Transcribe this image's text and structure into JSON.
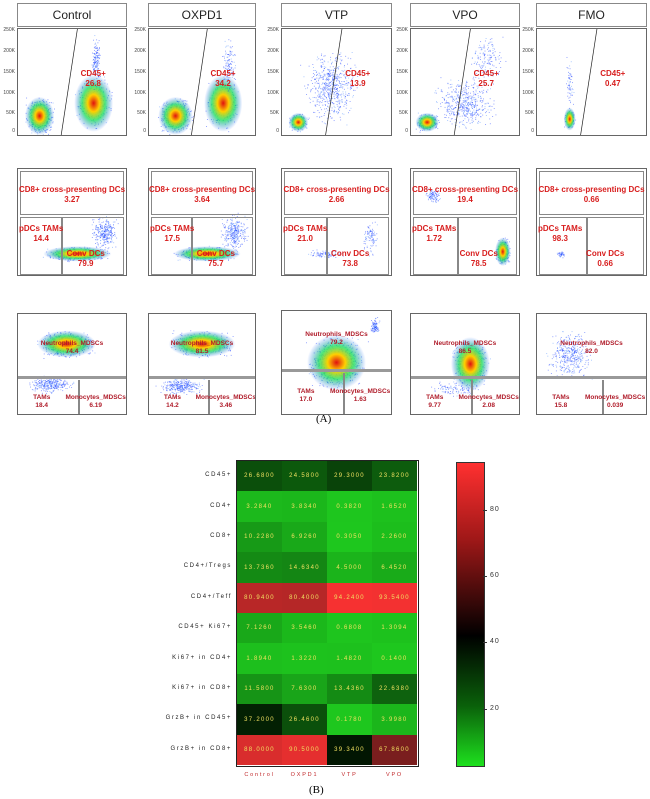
{
  "panel_label_a": "(A)",
  "panel_label_b": "(B)",
  "groups": [
    "Control",
    "OXPD1",
    "VTP",
    "VPO",
    "FMO"
  ],
  "row1": [
    {
      "gate": "CD45+",
      "value": "26.8"
    },
    {
      "gate": "CD45+",
      "value": "34.2"
    },
    {
      "gate": "CD45+",
      "value": "13.9"
    },
    {
      "gate": "CD45+",
      "value": "25.7"
    },
    {
      "gate": "CD45+",
      "value": "0.47"
    }
  ],
  "row2": [
    {
      "cd8_label": "CD8+ cross-presenting DCs",
      "cd8": "3.27",
      "pdc_label": "pDCs TAMs",
      "pdc": "14.4",
      "conv_label": "Conv DCs",
      "conv": "79.9"
    },
    {
      "cd8_label": "CD8+ cross-presenting DCs",
      "cd8": "3.64",
      "pdc_label": "pDCs TAMs",
      "pdc": "17.5",
      "conv_label": "Conv DCs",
      "conv": "75.7"
    },
    {
      "cd8_label": "CD8+ cross-presenting DCs",
      "cd8": "2.66",
      "pdc_label": "pDCs TAMs",
      "pdc": "21.0",
      "conv_label": "Conv DCs",
      "conv": "73.8"
    },
    {
      "cd8_label": "CD8+ cross-presenting DCs",
      "cd8": "19.4",
      "pdc_label": "pDCs TAMs",
      "pdc": "1.72",
      "conv_label": "Conv DCs",
      "conv": "78.5"
    },
    {
      "cd8_label": "CD8+ cross-presenting DCs",
      "cd8": "0.66",
      "pdc_label": "pDCs TAMs",
      "pdc": "98.3",
      "conv_label": "Conv DCs",
      "conv": "0.66"
    }
  ],
  "row3": [
    {
      "neu_label": "Neutrophils_MDSCs",
      "neu": "74.4",
      "tam_label": "TAMs",
      "tam": "18.4",
      "mono_label": "Monocytes_MDSCs",
      "mono": "6.19"
    },
    {
      "neu_label": "Neutrophils_MDSCs",
      "neu": "81.5",
      "tam_label": "TAMs",
      "tam": "14.2",
      "mono_label": "Monocytes_MDSCs",
      "mono": "3.46"
    },
    {
      "neu_label": "Neutrophils_MDSCs",
      "neu": "79.2",
      "tam_label": "TAMs",
      "tam": "17.0",
      "mono_label": "Monocytes_MDSCs",
      "mono": "1.63"
    },
    {
      "neu_label": "Neutrophils_MDSCs",
      "neu": "86.5",
      "tam_label": "TAMs",
      "tam": "9.77",
      "mono_label": "Monocytes_MDSCs",
      "mono": "2.08"
    },
    {
      "neu_label": "Neutrophils_MDSCs",
      "neu": "82.0",
      "tam_label": "TAMs",
      "tam": "15.8",
      "mono_label": "Monocytes_MDSCs",
      "mono": "0.039"
    }
  ],
  "flow_axis_ticks_y_row1": [
    "250K",
    "200K",
    "150K",
    "100K",
    "50K",
    "0"
  ],
  "chart_data": {
    "type": "heatmap",
    "columns": [
      "Control",
      "OXPD1",
      "VTP",
      "VPO"
    ],
    "rows": [
      "CD45+",
      "CD4+",
      "CD8+",
      "CD4+/Tregs",
      "CD4+/Teff",
      "CD45+ Ki67+",
      "Ki67+ in CD4+",
      "Ki67+ in CD8+",
      "GrzB+ in CD45+",
      "GrzB+ in CD8+"
    ],
    "values": [
      [
        26.68,
        24.58,
        29.3,
        23.82
      ],
      [
        3.284,
        3.834,
        0.382,
        1.652
      ],
      [
        10.228,
        6.926,
        0.305,
        2.26
      ],
      [
        13.736,
        14.634,
        4.5,
        6.452
      ],
      [
        80.94,
        80.4,
        94.24,
        93.54
      ],
      [
        7.126,
        3.546,
        0.6808,
        1.3094
      ],
      [
        1.894,
        1.322,
        1.482,
        0.14
      ],
      [
        11.58,
        7.63,
        13.436,
        22.638
      ],
      [
        37.2,
        26.46,
        0.178,
        3.998
      ],
      [
        88.0,
        90.5,
        39.34,
        67.86
      ]
    ],
    "colorbar_ticks": [
      80,
      60,
      40,
      20
    ],
    "colorscale": {
      "low": "#1ec81e",
      "mid": "#000000",
      "high": "#ff3030"
    },
    "zlim": [
      0,
      95
    ]
  }
}
